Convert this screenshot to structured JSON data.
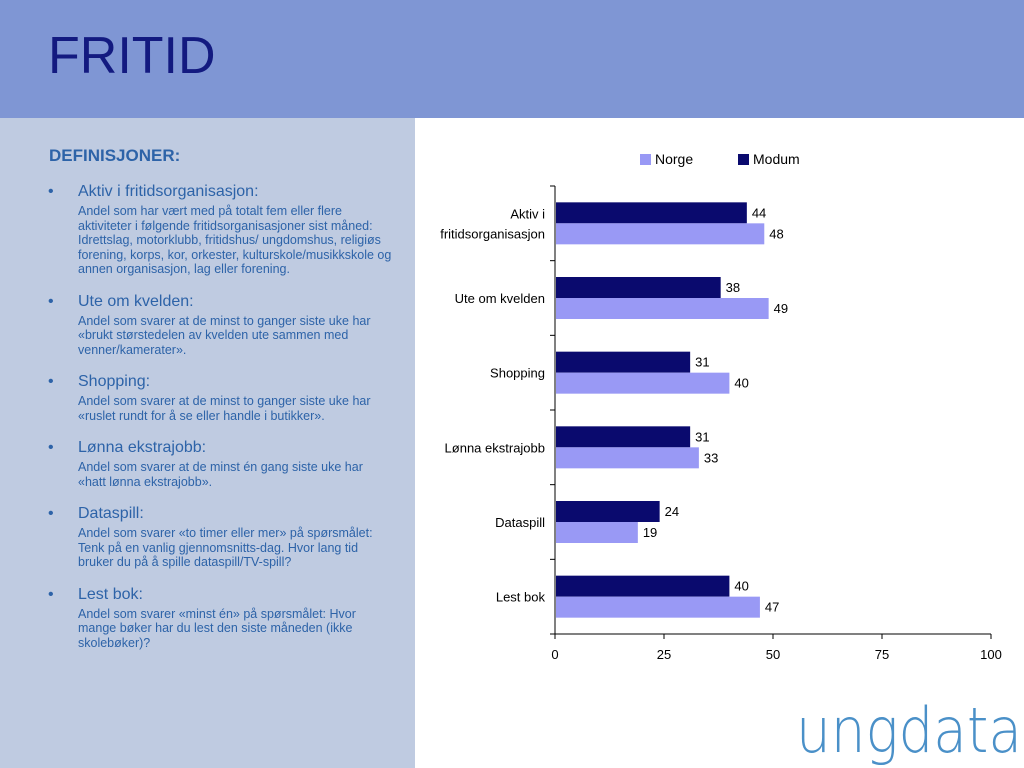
{
  "page": {
    "title": "FRITID"
  },
  "sidebar": {
    "heading": "DEFINISJONER:",
    "items": [
      {
        "term": "Aktiv i fritidsorganisasjon:",
        "text": "Andel som har vært med på totalt fem eller flere aktiviteter i følgende fritidsorganisasjoner sist måned: Idrettslag, motorklubb, fritidshus/ ungdomshus, religiøs forening, korps, kor, orkester, kulturskole/musikkskole og annen organisasjon, lag eller forening."
      },
      {
        "term": "Ute om kvelden:",
        "text": "Andel som svarer at de minst to ganger siste uke har «brukt størstedelen av kvelden ute sammen med venner/kamerater»."
      },
      {
        "term": "Shopping:",
        "text": "Andel som svarer at de minst to ganger siste uke har «ruslet rundt for å se eller handle i butikker»."
      },
      {
        "term": "Lønna ekstrajobb:",
        "text": "Andel som svarer at de minst én gang siste uke har «hatt lønna ekstrajobb»."
      },
      {
        "term": "Dataspill:",
        "text": "Andel som svarer «to timer eller mer» på spørsmålet: Tenk på en vanlig gjennomsnitts-dag. Hvor lang tid bruker du på å spille dataspill/TV-spill?"
      },
      {
        "term": "Lest bok:",
        "text": "Andel som svarer «minst én» på spørsmålet: Hvor mange bøker har du lest den siste måneden (ikke skolebøker)?"
      }
    ]
  },
  "logo": {
    "text": "ungdata",
    "color": "#4a90c8"
  },
  "chart_data": {
    "type": "bar",
    "orientation": "horizontal",
    "categories": [
      [
        "Aktiv i",
        "fritidsorganisasjon"
      ],
      [
        "Ute om kvelden"
      ],
      [
        "Shopping"
      ],
      [
        "Lønna ekstrajobb"
      ],
      [
        "Dataspill"
      ],
      [
        "Lest bok"
      ]
    ],
    "series": [
      {
        "name": "Modum",
        "color": "#0a0a6e",
        "values": [
          44,
          38,
          31,
          31,
          24,
          40
        ]
      },
      {
        "name": "Norge",
        "color": "#9999f5",
        "values": [
          48,
          49,
          40,
          33,
          19,
          47
        ]
      }
    ],
    "legend_order": [
      "Norge",
      "Modum"
    ],
    "legend_position": "top",
    "xlim": [
      0,
      100
    ],
    "xticks": [
      0,
      25,
      50,
      75,
      100
    ],
    "grid": false,
    "data_labels": true
  }
}
